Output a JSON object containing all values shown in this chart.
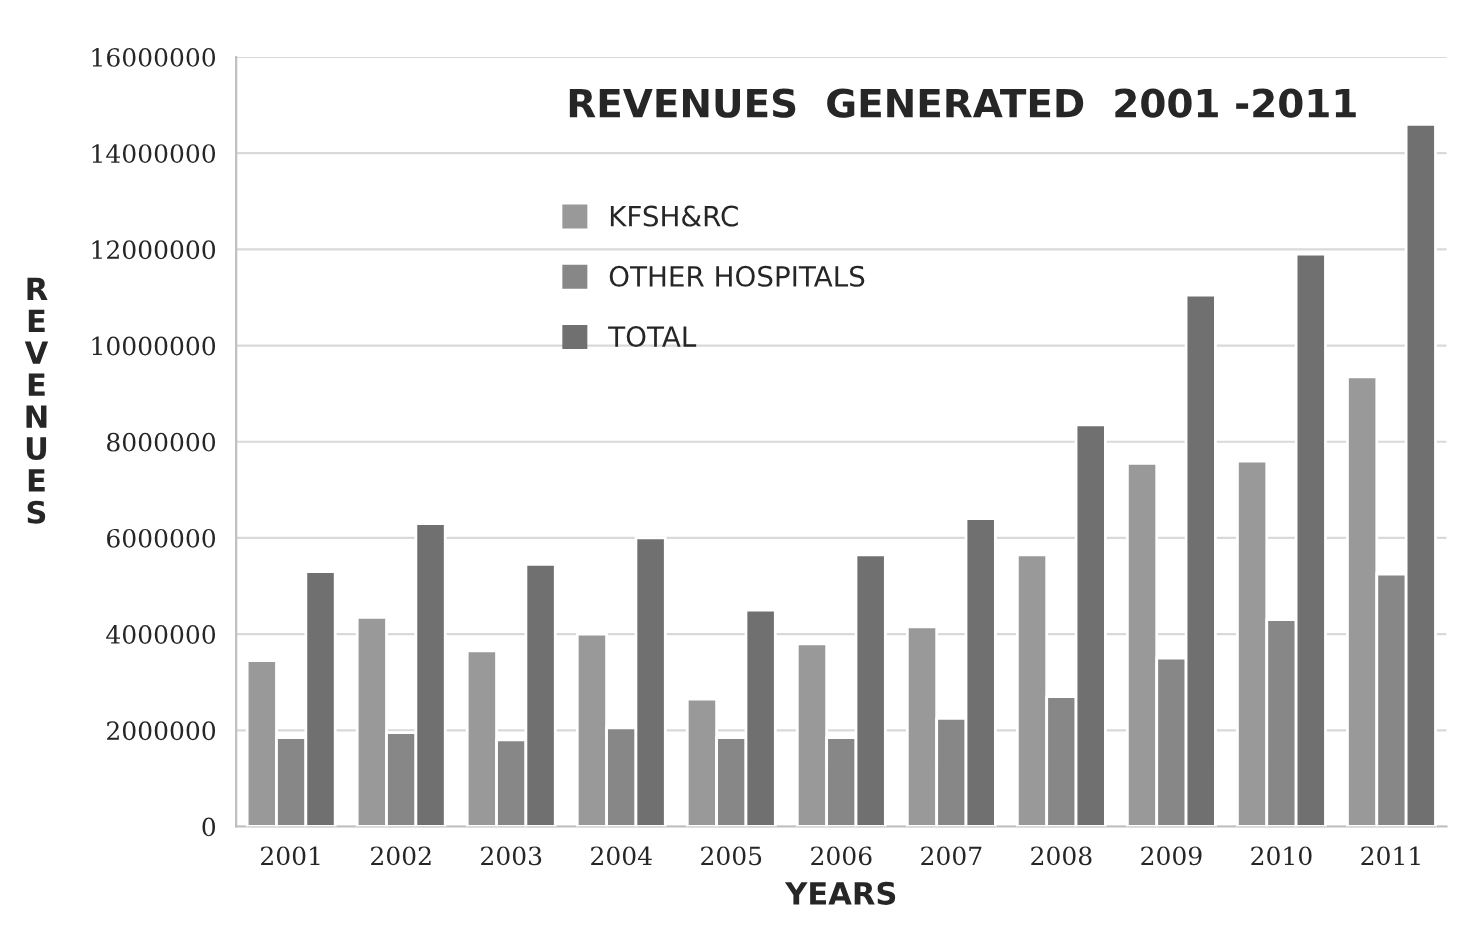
{
  "chart_data": {
    "type": "bar",
    "title": "REVENUES  GENERATED  2001 -2011",
    "xlabel": "YEARS",
    "ylabel": "R\nE\nV\nE\nN\nU\nE\nS",
    "categories": [
      "2001",
      "2002",
      "2003",
      "2004",
      "2005",
      "2006",
      "2007",
      "2008",
      "2009",
      "2010",
      "2011"
    ],
    "series": [
      {
        "name": "KFSH&RC",
        "color": "#999999",
        "values": [
          3450000,
          4350000,
          3650000,
          4000000,
          2650000,
          3800000,
          4150000,
          5650000,
          7550000,
          7600000,
          9350000
        ]
      },
      {
        "name": "OTHER HOSPITALS",
        "color": "#878787",
        "values": [
          1850000,
          1950000,
          1800000,
          2050000,
          1850000,
          1850000,
          2250000,
          2700000,
          3500000,
          4300000,
          5250000
        ]
      },
      {
        "name": "TOTAL",
        "color": "#707070",
        "values": [
          5300000,
          6300000,
          5450000,
          6000000,
          4500000,
          5650000,
          6400000,
          8350000,
          11050000,
          11900000,
          14600000
        ]
      }
    ],
    "ylim": [
      0,
      16000000
    ],
    "yticks": [
      0,
      2000000,
      4000000,
      6000000,
      8000000,
      10000000,
      12000000,
      14000000,
      16000000
    ],
    "grid": "y",
    "legend": "top left"
  }
}
